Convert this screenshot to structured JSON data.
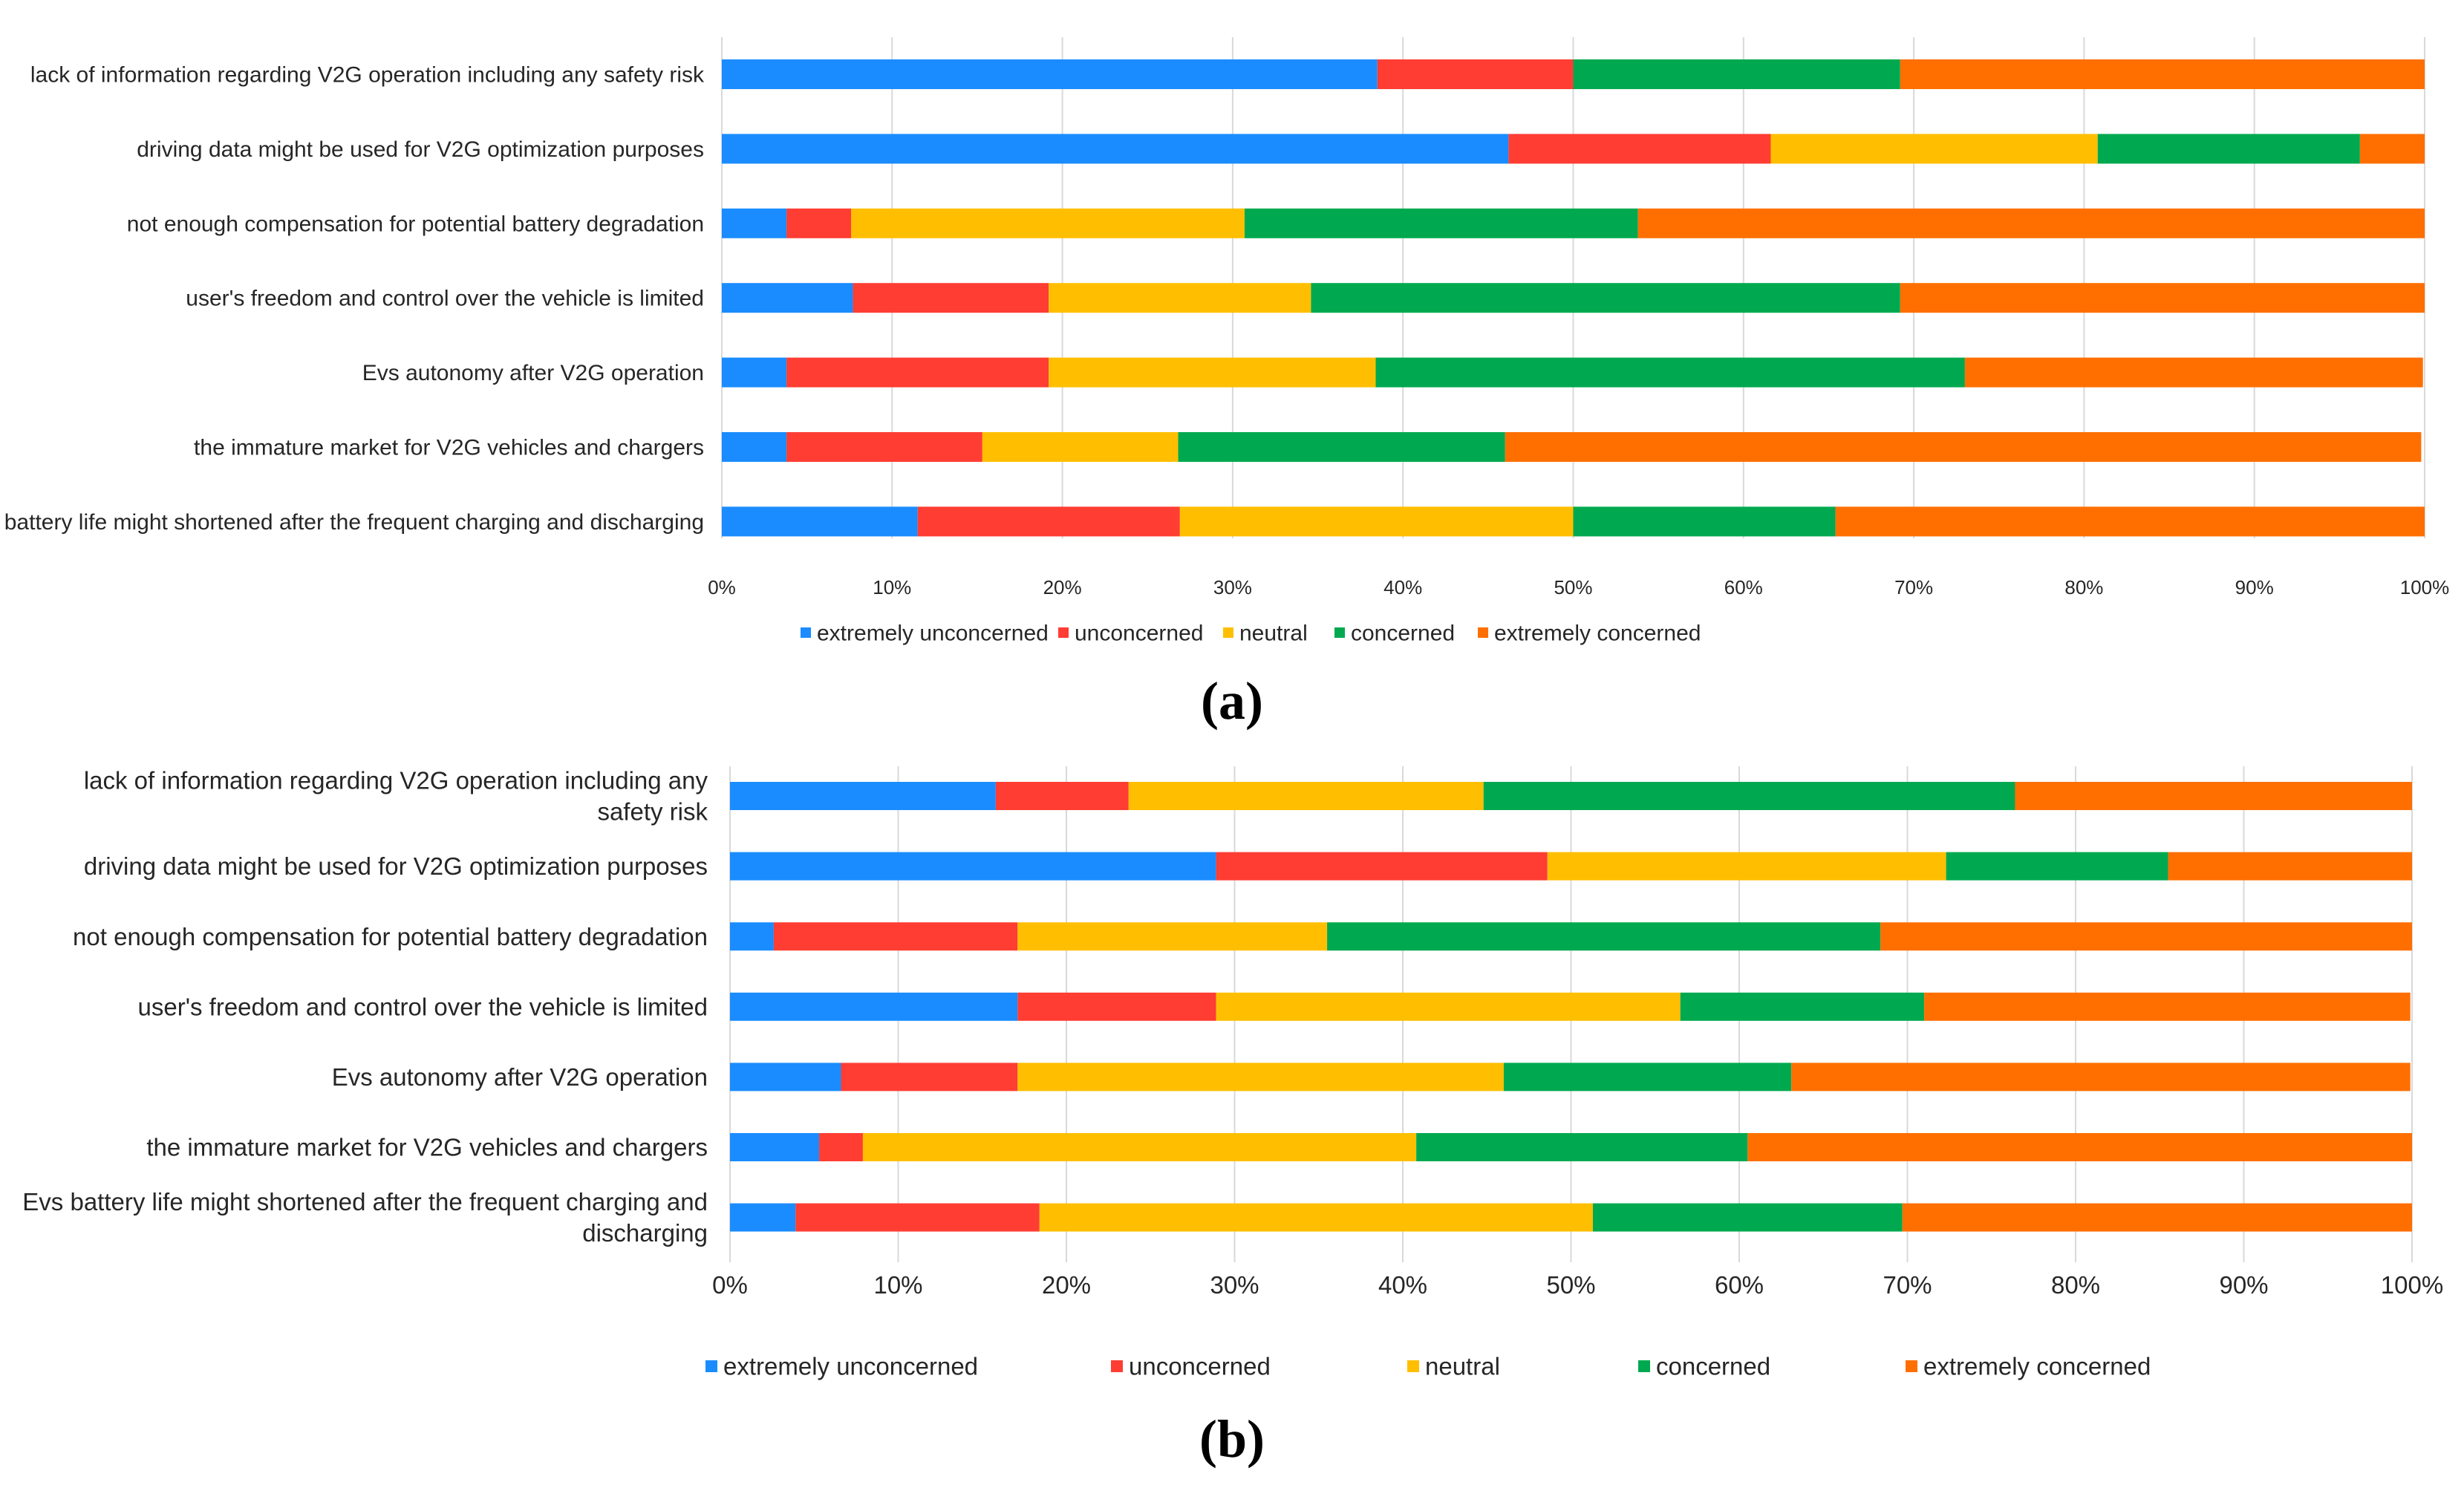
{
  "chart_data": [
    {
      "type": "bar",
      "orientation": "horizontal",
      "stacked": true,
      "subfigure_label": "(a)",
      "title": "",
      "xlabel": "",
      "ylabel": "",
      "xlim": [
        0,
        100
      ],
      "grid": true,
      "legend_position": "bottom",
      "categories": [
        [
          "lack of information regarding V2G operation including any safety risk"
        ],
        [
          "driving data might be used for V2G optimization purposes"
        ],
        [
          "not enough compensation for potential battery degradation"
        ],
        [
          "user's freedom and control over the vehicle is limited"
        ],
        [
          "Evs autonomy after V2G operation"
        ],
        [
          "the immature market for V2G vehicles and chargers"
        ],
        [
          "Evs battery life might shortened after the frequent charging and discharging"
        ]
      ],
      "tick_labels": [
        "0%",
        "10%",
        "20%",
        "30%",
        "40%",
        "50%",
        "60%",
        "70%",
        "80%",
        "90%",
        "100%"
      ],
      "series": [
        {
          "name": "extremely unconcerned",
          "color": "#1a8cff",
          "values": [
            38.5,
            46.2,
            3.8,
            7.7,
            3.8,
            3.8,
            11.5
          ]
        },
        {
          "name": "unconcerned",
          "color": "#ff3d33",
          "values": [
            11.5,
            15.4,
            3.8,
            11.5,
            15.4,
            11.5,
            15.4
          ]
        },
        {
          "name": "neutral",
          "color": "#ffbf00",
          "values": [
            0,
            19.2,
            23.1,
            15.4,
            19.2,
            11.5,
            23.1
          ]
        },
        {
          "name": "concerned",
          "color": "#00a94f",
          "values": [
            19.2,
            15.4,
            23.1,
            34.6,
            34.6,
            19.2,
            15.4
          ]
        },
        {
          "name": "extremely concerned",
          "color": "#ff6f00",
          "values": [
            30.8,
            3.8,
            46.2,
            30.8,
            26.9,
            53.8,
            34.6
          ]
        }
      ]
    },
    {
      "type": "bar",
      "orientation": "horizontal",
      "stacked": true,
      "subfigure_label": "(b)",
      "title": "",
      "xlabel": "",
      "ylabel": "",
      "xlim": [
        0,
        100
      ],
      "grid": true,
      "legend_position": "bottom",
      "categories": [
        [
          "lack of information regarding V2G operation including any",
          "safety risk"
        ],
        [
          "driving data might be used for V2G optimization purposes"
        ],
        [
          "not enough compensation for potential battery degradation"
        ],
        [
          "user's freedom and control over the vehicle is limited"
        ],
        [
          "Evs autonomy after V2G operation"
        ],
        [
          "the immature market for V2G vehicles and chargers"
        ],
        [
          "Evs battery life might shortened after the frequent charging and",
          "discharging"
        ]
      ],
      "tick_labels": [
        "0%",
        "10%",
        "20%",
        "30%",
        "40%",
        "50%",
        "60%",
        "70%",
        "80%",
        "90%",
        "100%"
      ],
      "series": [
        {
          "name": "extremely unconcerned",
          "color": "#1a8cff",
          "values": [
            15.8,
            28.9,
            2.6,
            17.1,
            6.6,
            5.3,
            3.9
          ]
        },
        {
          "name": "unconcerned",
          "color": "#ff3d33",
          "values": [
            7.9,
            19.7,
            14.5,
            11.8,
            10.5,
            2.6,
            14.5
          ]
        },
        {
          "name": "neutral",
          "color": "#ffbf00",
          "values": [
            21.1,
            23.7,
            18.4,
            27.6,
            28.9,
            32.9,
            32.9
          ]
        },
        {
          "name": "concerned",
          "color": "#00a94f",
          "values": [
            31.6,
            13.2,
            32.9,
            14.5,
            17.1,
            19.7,
            18.4
          ]
        },
        {
          "name": "extremely concerned",
          "color": "#ff6f00",
          "values": [
            23.7,
            14.5,
            31.6,
            28.9,
            36.8,
            39.5,
            30.3
          ]
        }
      ]
    }
  ]
}
